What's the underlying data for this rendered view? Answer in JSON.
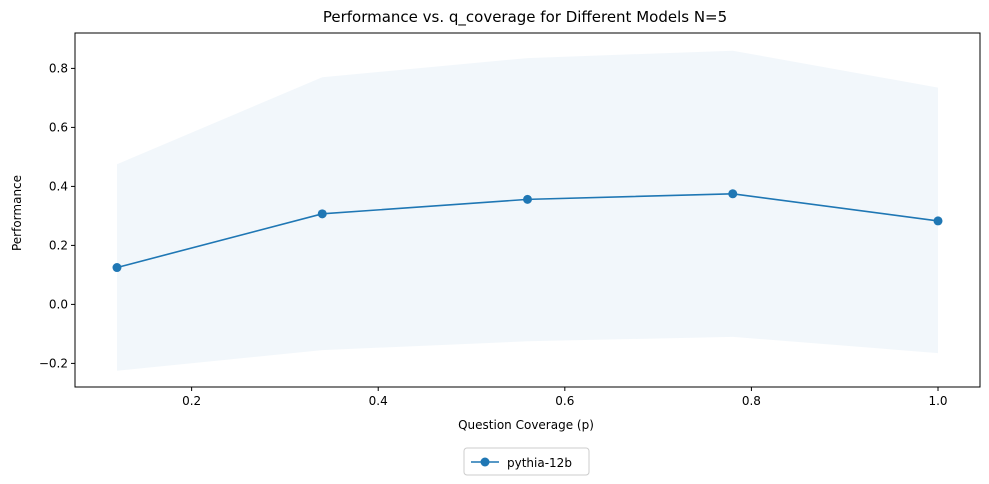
{
  "chart_data": {
    "type": "line",
    "title": "Performance vs. q_coverage for Different Models N=5",
    "xlabel": "Question Coverage (p)",
    "ylabel": "Performance",
    "xlim": [
      0.075,
      1.045
    ],
    "ylim": [
      -0.28,
      0.92
    ],
    "xticks": [
      0.2,
      0.4,
      0.6,
      0.8,
      1.0
    ],
    "xtick_labels": [
      "0.2",
      "0.4",
      "0.6",
      "0.8",
      "1.0"
    ],
    "yticks": [
      -0.2,
      0.0,
      0.2,
      0.4,
      0.6,
      0.8
    ],
    "ytick_labels": [
      "−0.2",
      "0.0",
      "0.2",
      "0.4",
      "0.6",
      "0.8"
    ],
    "grid": false,
    "legend_position": "below-center",
    "series": [
      {
        "name": "pythia-12b",
        "color": "#1f77b4",
        "marker": "circle",
        "x": [
          0.12,
          0.34,
          0.56,
          0.78,
          1.0
        ],
        "y": [
          0.125,
          0.307,
          0.356,
          0.375,
          0.283
        ],
        "band_upper": [
          0.475,
          0.77,
          0.835,
          0.86,
          0.735
        ],
        "band_lower": [
          -0.225,
          -0.155,
          -0.125,
          -0.11,
          -0.165
        ],
        "band_color": "#1f77b4",
        "band_opacity": 0.06
      }
    ]
  }
}
